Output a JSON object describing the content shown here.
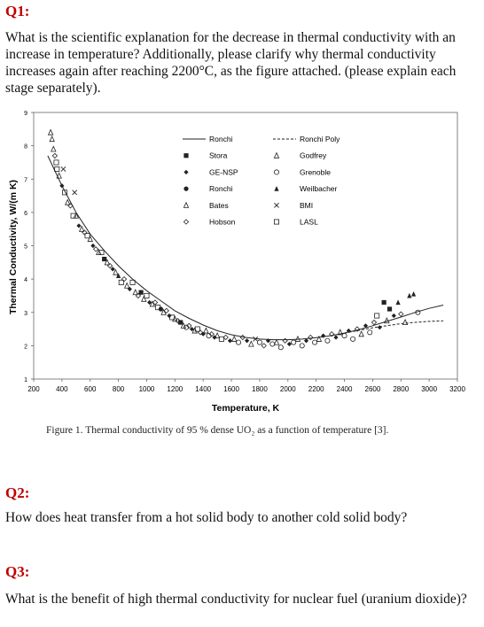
{
  "q1": {
    "heading": "Q1:",
    "text": "What is the scientific explanation for the decrease in thermal conductivity with an increase in temperature? Additionally, please clarify why thermal conductivity increases again after reaching 2200°C, as the figure attached. (please explain each stage separately)."
  },
  "figure": {
    "caption": "Figure 1. Thermal conductivity of 95 % dense UO₂ as a function of temperature [3]."
  },
  "chart_data": {
    "type": "scatter",
    "xlabel": "Temperature, K",
    "ylabel": "Thermal Conductivity, W/(m K)",
    "xlim": [
      200,
      3200
    ],
    "ylim": [
      1,
      9
    ],
    "x_ticks": [
      "200",
      "400",
      "600",
      "800",
      "1000",
      "1200",
      "1400",
      "1600",
      "1800",
      "2000",
      "2200",
      "2400",
      "2600",
      "2800",
      "3000",
      "3200"
    ],
    "y_ticks": [
      "1",
      "2",
      "3",
      "4",
      "5",
      "6",
      "7",
      "8",
      "9"
    ],
    "grid": false,
    "legend_position": "top-center",
    "legend": [
      {
        "name": "Ronchi",
        "symbol": "solid-line"
      },
      {
        "name": "Ronchi Poly",
        "symbol": "dashed-line"
      },
      {
        "name": "Stora",
        "symbol": "filled-square"
      },
      {
        "name": "Godfrey",
        "symbol": "open-triangle"
      },
      {
        "name": "GE-NSP",
        "symbol": "filled-diamond"
      },
      {
        "name": "Grenoble",
        "symbol": "open-circle"
      },
      {
        "name": "Ronchi",
        "symbol": "filled-circle"
      },
      {
        "name": "Weilbacher",
        "symbol": "filled-triangle"
      },
      {
        "name": "Bates",
        "symbol": "open-triangle"
      },
      {
        "name": "BMI",
        "symbol": "cross"
      },
      {
        "name": "Hobson",
        "symbol": "open-diamond"
      },
      {
        "name": "LASL",
        "symbol": "open-square"
      }
    ],
    "ronchi_fit": {
      "x": [
        300,
        400,
        500,
        600,
        700,
        800,
        900,
        1000,
        1100,
        1200,
        1300,
        1400,
        1500,
        1600,
        1700,
        1800,
        1900,
        2000,
        2100,
        2200,
        2300,
        2400,
        2500,
        2600,
        2700,
        2800,
        2900,
        3000,
        3100
      ],
      "y": [
        7.7,
        6.8,
        6.0,
        5.35,
        4.85,
        4.4,
        4.0,
        3.65,
        3.35,
        3.05,
        2.82,
        2.62,
        2.45,
        2.33,
        2.25,
        2.2,
        2.18,
        2.18,
        2.2,
        2.24,
        2.3,
        2.38,
        2.48,
        2.6,
        2.73,
        2.86,
        3.0,
        3.12,
        3.22
      ]
    },
    "ronchi_poly_fit": {
      "x": [
        2400,
        2500,
        2600,
        2700,
        2800,
        2900,
        3000,
        3100
      ],
      "y": [
        2.38,
        2.46,
        2.54,
        2.6,
        2.66,
        2.7,
        2.73,
        2.75
      ]
    },
    "points": [
      {
        "x": 320,
        "y": 8.4,
        "s": "open-triangle"
      },
      {
        "x": 330,
        "y": 8.2,
        "s": "open-triangle"
      },
      {
        "x": 340,
        "y": 7.9,
        "s": "open-triangle"
      },
      {
        "x": 350,
        "y": 7.7,
        "s": "open-diamond"
      },
      {
        "x": 360,
        "y": 7.5,
        "s": "open-square"
      },
      {
        "x": 365,
        "y": 7.3,
        "s": "open-square"
      },
      {
        "x": 380,
        "y": 7.1,
        "s": "open-triangle"
      },
      {
        "x": 400,
        "y": 6.8,
        "s": "filled-diamond"
      },
      {
        "x": 410,
        "y": 7.3,
        "s": "cross"
      },
      {
        "x": 420,
        "y": 6.6,
        "s": "open-square"
      },
      {
        "x": 440,
        "y": 6.3,
        "s": "open-triangle"
      },
      {
        "x": 460,
        "y": 6.2,
        "s": "open-diamond"
      },
      {
        "x": 480,
        "y": 5.9,
        "s": "open-square"
      },
      {
        "x": 490,
        "y": 6.6,
        "s": "cross"
      },
      {
        "x": 500,
        "y": 5.9,
        "s": "open-triangle"
      },
      {
        "x": 520,
        "y": 5.6,
        "s": "filled-diamond"
      },
      {
        "x": 540,
        "y": 5.5,
        "s": "open-triangle"
      },
      {
        "x": 560,
        "y": 5.4,
        "s": "open-diamond"
      },
      {
        "x": 580,
        "y": 5.3,
        "s": "open-square"
      },
      {
        "x": 600,
        "y": 5.2,
        "s": "open-triangle"
      },
      {
        "x": 620,
        "y": 5.0,
        "s": "filled-diamond"
      },
      {
        "x": 640,
        "y": 4.9,
        "s": "open-diamond"
      },
      {
        "x": 660,
        "y": 4.8,
        "s": "open-triangle"
      },
      {
        "x": 680,
        "y": 4.8,
        "s": "open-square"
      },
      {
        "x": 700,
        "y": 4.6,
        "s": "filled-square"
      },
      {
        "x": 720,
        "y": 4.5,
        "s": "open-triangle"
      },
      {
        "x": 740,
        "y": 4.4,
        "s": "open-diamond"
      },
      {
        "x": 760,
        "y": 4.3,
        "s": "filled-diamond"
      },
      {
        "x": 780,
        "y": 4.2,
        "s": "open-triangle"
      },
      {
        "x": 800,
        "y": 4.1,
        "s": "filled-triangle"
      },
      {
        "x": 820,
        "y": 3.9,
        "s": "open-square"
      },
      {
        "x": 840,
        "y": 4.0,
        "s": "open-diamond"
      },
      {
        "x": 860,
        "y": 3.8,
        "s": "open-triangle"
      },
      {
        "x": 880,
        "y": 3.7,
        "s": "filled-diamond"
      },
      {
        "x": 900,
        "y": 3.9,
        "s": "open-square"
      },
      {
        "x": 920,
        "y": 3.6,
        "s": "open-triangle"
      },
      {
        "x": 940,
        "y": 3.5,
        "s": "open-diamond"
      },
      {
        "x": 960,
        "y": 3.6,
        "s": "filled-square"
      },
      {
        "x": 980,
        "y": 3.4,
        "s": "open-triangle"
      },
      {
        "x": 1000,
        "y": 3.5,
        "s": "open-square"
      },
      {
        "x": 1020,
        "y": 3.3,
        "s": "filled-diamond"
      },
      {
        "x": 1040,
        "y": 3.25,
        "s": "open-triangle"
      },
      {
        "x": 1060,
        "y": 3.3,
        "s": "open-diamond"
      },
      {
        "x": 1080,
        "y": 3.15,
        "s": "open-square"
      },
      {
        "x": 1100,
        "y": 3.1,
        "s": "filled-circle"
      },
      {
        "x": 1120,
        "y": 3.0,
        "s": "open-triangle"
      },
      {
        "x": 1140,
        "y": 3.05,
        "s": "open-diamond"
      },
      {
        "x": 1160,
        "y": 2.9,
        "s": "filled-diamond"
      },
      {
        "x": 1180,
        "y": 2.85,
        "s": "open-square"
      },
      {
        "x": 1200,
        "y": 2.8,
        "s": "open-triangle"
      },
      {
        "x": 1220,
        "y": 2.75,
        "s": "open-diamond"
      },
      {
        "x": 1240,
        "y": 2.7,
        "s": "filled-square"
      },
      {
        "x": 1260,
        "y": 2.6,
        "s": "open-triangle"
      },
      {
        "x": 1280,
        "y": 2.55,
        "s": "open-circle"
      },
      {
        "x": 1300,
        "y": 2.6,
        "s": "open-diamond"
      },
      {
        "x": 1320,
        "y": 2.5,
        "s": "filled-diamond"
      },
      {
        "x": 1340,
        "y": 2.45,
        "s": "open-triangle"
      },
      {
        "x": 1360,
        "y": 2.5,
        "s": "open-square"
      },
      {
        "x": 1380,
        "y": 2.4,
        "s": "open-diamond"
      },
      {
        "x": 1400,
        "y": 2.35,
        "s": "filled-diamond"
      },
      {
        "x": 1420,
        "y": 2.45,
        "s": "open-triangle"
      },
      {
        "x": 1440,
        "y": 2.3,
        "s": "open-circle"
      },
      {
        "x": 1460,
        "y": 2.35,
        "s": "open-diamond"
      },
      {
        "x": 1480,
        "y": 2.25,
        "s": "filled-diamond"
      },
      {
        "x": 1500,
        "y": 2.3,
        "s": "open-triangle"
      },
      {
        "x": 1530,
        "y": 2.2,
        "s": "open-square"
      },
      {
        "x": 1560,
        "y": 2.25,
        "s": "open-diamond"
      },
      {
        "x": 1590,
        "y": 2.15,
        "s": "filled-diamond"
      },
      {
        "x": 1620,
        "y": 2.2,
        "s": "open-triangle"
      },
      {
        "x": 1650,
        "y": 2.1,
        "s": "open-circle"
      },
      {
        "x": 1680,
        "y": 2.25,
        "s": "open-diamond"
      },
      {
        "x": 1710,
        "y": 2.15,
        "s": "filled-diamond"
      },
      {
        "x": 1740,
        "y": 2.05,
        "s": "open-triangle"
      },
      {
        "x": 1770,
        "y": 2.2,
        "s": "cross"
      },
      {
        "x": 1800,
        "y": 2.1,
        "s": "open-circle"
      },
      {
        "x": 1830,
        "y": 2.0,
        "s": "open-diamond"
      },
      {
        "x": 1860,
        "y": 2.15,
        "s": "filled-diamond"
      },
      {
        "x": 1890,
        "y": 2.05,
        "s": "open-circle"
      },
      {
        "x": 1920,
        "y": 2.1,
        "s": "open-triangle"
      },
      {
        "x": 1950,
        "y": 1.95,
        "s": "open-circle"
      },
      {
        "x": 1980,
        "y": 2.15,
        "s": "open-diamond"
      },
      {
        "x": 2010,
        "y": 2.05,
        "s": "filled-diamond"
      },
      {
        "x": 2040,
        "y": 2.1,
        "s": "open-circle"
      },
      {
        "x": 2070,
        "y": 2.2,
        "s": "open-triangle"
      },
      {
        "x": 2100,
        "y": 2.0,
        "s": "open-circle"
      },
      {
        "x": 2130,
        "y": 2.15,
        "s": "filled-diamond"
      },
      {
        "x": 2160,
        "y": 2.25,
        "s": "open-diamond"
      },
      {
        "x": 2190,
        "y": 2.1,
        "s": "open-circle"
      },
      {
        "x": 2220,
        "y": 2.2,
        "s": "open-triangle"
      },
      {
        "x": 2250,
        "y": 2.3,
        "s": "filled-diamond"
      },
      {
        "x": 2280,
        "y": 2.15,
        "s": "open-circle"
      },
      {
        "x": 2310,
        "y": 2.35,
        "s": "open-diamond"
      },
      {
        "x": 2340,
        "y": 2.25,
        "s": "filled-diamond"
      },
      {
        "x": 2370,
        "y": 2.4,
        "s": "open-triangle"
      },
      {
        "x": 2400,
        "y": 2.3,
        "s": "open-circle"
      },
      {
        "x": 2430,
        "y": 2.45,
        "s": "filled-diamond"
      },
      {
        "x": 2460,
        "y": 2.2,
        "s": "open-circle"
      },
      {
        "x": 2490,
        "y": 2.5,
        "s": "open-diamond"
      },
      {
        "x": 2520,
        "y": 2.35,
        "s": "open-triangle"
      },
      {
        "x": 2550,
        "y": 2.6,
        "s": "filled-diamond"
      },
      {
        "x": 2580,
        "y": 2.4,
        "s": "open-circle"
      },
      {
        "x": 2610,
        "y": 2.7,
        "s": "open-diamond"
      },
      {
        "x": 2630,
        "y": 2.9,
        "s": "open-square"
      },
      {
        "x": 2650,
        "y": 2.55,
        "s": "filled-diamond"
      },
      {
        "x": 2680,
        "y": 3.3,
        "s": "filled-square"
      },
      {
        "x": 2700,
        "y": 2.75,
        "s": "open-triangle"
      },
      {
        "x": 2720,
        "y": 3.1,
        "s": "filled-square"
      },
      {
        "x": 2750,
        "y": 2.9,
        "s": "filled-diamond"
      },
      {
        "x": 2780,
        "y": 3.3,
        "s": "filled-triangle"
      },
      {
        "x": 2800,
        "y": 2.95,
        "s": "open-diamond"
      },
      {
        "x": 2830,
        "y": 2.7,
        "s": "open-triangle"
      },
      {
        "x": 2860,
        "y": 3.5,
        "s": "filled-triangle"
      },
      {
        "x": 2890,
        "y": 3.55,
        "s": "filled-triangle"
      },
      {
        "x": 2920,
        "y": 3.0,
        "s": "open-circle"
      }
    ]
  },
  "q2": {
    "heading": "Q2:",
    "text": "How does heat transfer from a hot solid body to another cold solid body?"
  },
  "q3": {
    "heading": "Q3:",
    "text": "What is the benefit of high thermal conductivity for nuclear fuel (uranium dioxide)?"
  }
}
